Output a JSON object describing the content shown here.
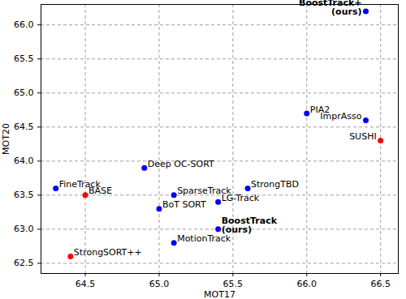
{
  "chart_data": {
    "type": "scatter",
    "x_label": "MOT17",
    "y_label": "MOT20",
    "labels": [
      "FineTrack",
      "BASE",
      "StrongSORT++",
      "Deep OC-SORT",
      "BoT SORT",
      "SparseTrack",
      "MotionTrack",
      "LG-Track",
      "BoostTrack\n(ours)",
      "StrongTBD",
      "PIA2",
      "ImprAsso",
      "SUSHI",
      "BoostTrack+\n(ours)"
    ],
    "x": [
      64.3,
      64.5,
      64.4,
      64.9,
      65.0,
      65.1,
      65.1,
      65.4,
      65.4,
      65.6,
      66.0,
      66.4,
      66.5,
      66.4
    ],
    "values": [
      63.6,
      63.5,
      62.6,
      63.9,
      63.3,
      63.5,
      62.8,
      63.4,
      63.0,
      63.6,
      64.7,
      64.6,
      64.3,
      66.2
    ],
    "colors": [
      "#0000ff",
      "#ff0000",
      "#ff0000",
      "#0000ff",
      "#0000ff",
      "#0000ff",
      "#0000ff",
      "#0000ff",
      "#0000ff",
      "#0000ff",
      "#0000ff",
      "#0000ff",
      "#ff0000",
      "#0000ff"
    ],
    "xlim": [
      64.2,
      66.62
    ],
    "ylim": [
      62.35,
      66.3
    ],
    "xticks": [
      64.5,
      {
        "value": 65,
        "label": "65.0"
      },
      65.5,
      {
        "value": 66,
        "label": "66.0"
      },
      66.5
    ],
    "yticks": [
      62.5,
      {
        "value": 63,
        "label": "63.0"
      },
      63.5,
      {
        "value": 64,
        "label": "64.0"
      },
      64.5,
      {
        "value": 65,
        "label": "65.0"
      },
      65.5,
      {
        "value": 66,
        "label": "66.0"
      }
    ],
    "grid": true
  }
}
